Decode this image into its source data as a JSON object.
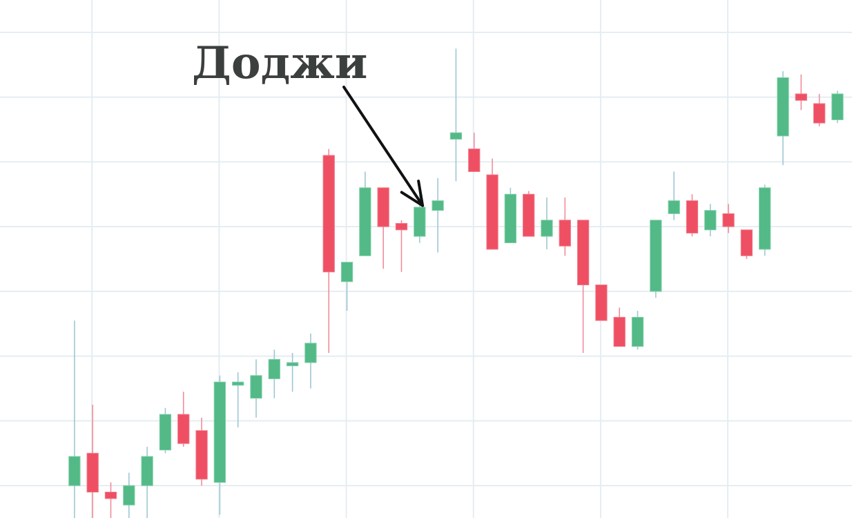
{
  "chart_data": {
    "type": "candlestick",
    "title": "",
    "xlabel": "",
    "ylabel": "",
    "grid": true,
    "ylim": [
      -0.5,
      7.5
    ],
    "x_range": [
      -4.1,
      42.8
    ],
    "colors": {
      "up": "#52b987",
      "up_wick": "#9fc7d2",
      "down": "#ef4f63",
      "down_wick": "#f08d99",
      "grid": "#e4edf2",
      "annotation": "#3b3f3d",
      "arrow": "#111111"
    },
    "annotation": {
      "text": "Доджи",
      "target_index": 20
    },
    "candles": [
      {
        "open": 0.0,
        "high": 2.55,
        "low": -0.8,
        "close": 0.45
      },
      {
        "open": 0.5,
        "high": 1.25,
        "low": -0.8,
        "close": -0.1
      },
      {
        "open": -0.1,
        "high": 0.05,
        "low": -0.8,
        "close": -0.2
      },
      {
        "open": -0.3,
        "high": 0.2,
        "low": -0.8,
        "close": 0.0
      },
      {
        "open": 0.0,
        "high": 0.6,
        "low": -0.8,
        "close": 0.45
      },
      {
        "open": 0.55,
        "high": 1.2,
        "low": 0.5,
        "close": 1.1
      },
      {
        "open": 1.1,
        "high": 1.45,
        "low": 0.6,
        "close": 0.65
      },
      {
        "open": 0.85,
        "high": 1.05,
        "low": 0.0,
        "close": 0.1
      },
      {
        "open": 0.05,
        "high": 1.7,
        "low": -0.45,
        "close": 1.6
      },
      {
        "open": 1.55,
        "high": 1.75,
        "low": 0.9,
        "close": 1.6
      },
      {
        "open": 1.35,
        "high": 1.95,
        "low": 1.05,
        "close": 1.7
      },
      {
        "open": 1.65,
        "high": 2.1,
        "low": 1.35,
        "close": 1.95
      },
      {
        "open": 1.85,
        "high": 2.05,
        "low": 1.45,
        "close": 1.9
      },
      {
        "open": 1.9,
        "high": 2.35,
        "low": 1.5,
        "close": 2.2
      },
      {
        "open": 5.1,
        "high": 5.2,
        "low": 2.05,
        "close": 3.3
      },
      {
        "open": 3.15,
        "high": 3.45,
        "low": 2.7,
        "close": 3.45
      },
      {
        "open": 3.55,
        "high": 4.85,
        "low": 3.6,
        "close": 4.6
      },
      {
        "open": 4.6,
        "high": 4.6,
        "low": 3.35,
        "close": 4.0
      },
      {
        "open": 4.05,
        "high": 4.1,
        "low": 3.3,
        "close": 3.95
      },
      {
        "open": 3.85,
        "high": 4.5,
        "low": 3.75,
        "close": 4.3
      },
      {
        "open": 4.25,
        "high": 4.75,
        "low": 3.6,
        "close": 4.4
      },
      {
        "open": 5.35,
        "high": 6.75,
        "low": 4.7,
        "close": 5.45
      },
      {
        "open": 5.2,
        "high": 5.45,
        "low": 4.85,
        "close": 4.85
      },
      {
        "open": 4.8,
        "high": 5.05,
        "low": 3.7,
        "close": 3.65
      },
      {
        "open": 3.75,
        "high": 4.6,
        "low": 3.75,
        "close": 4.5
      },
      {
        "open": 4.5,
        "high": 4.55,
        "low": 3.85,
        "close": 3.85
      },
      {
        "open": 3.85,
        "high": 4.45,
        "low": 3.65,
        "close": 4.1
      },
      {
        "open": 4.1,
        "high": 4.45,
        "low": 3.55,
        "close": 3.7
      },
      {
        "open": 4.1,
        "high": 4.1,
        "low": 2.05,
        "close": 3.1
      },
      {
        "open": 3.1,
        "high": 3.1,
        "low": 2.55,
        "close": 2.55
      },
      {
        "open": 2.6,
        "high": 2.75,
        "low": 2.15,
        "close": 2.15
      },
      {
        "open": 2.15,
        "high": 2.7,
        "low": 2.1,
        "close": 2.6
      },
      {
        "open": 3.0,
        "high": 4.1,
        "low": 2.9,
        "close": 4.1
      },
      {
        "open": 4.2,
        "high": 4.85,
        "low": 4.1,
        "close": 4.4
      },
      {
        "open": 4.4,
        "high": 4.5,
        "low": 3.85,
        "close": 3.9
      },
      {
        "open": 3.95,
        "high": 4.35,
        "low": 3.85,
        "close": 4.25
      },
      {
        "open": 4.2,
        "high": 4.35,
        "low": 3.9,
        "close": 4.0
      },
      {
        "open": 3.95,
        "high": 3.95,
        "low": 3.5,
        "close": 3.55
      },
      {
        "open": 3.65,
        "high": 4.65,
        "low": 3.55,
        "close": 4.6
      },
      {
        "open": 5.4,
        "high": 6.4,
        "low": 4.95,
        "close": 6.3
      },
      {
        "open": 6.05,
        "high": 6.35,
        "low": 5.8,
        "close": 5.95
      },
      {
        "open": 5.9,
        "high": 6.05,
        "low": 5.55,
        "close": 5.6
      },
      {
        "open": 5.65,
        "high": 6.1,
        "low": 5.6,
        "close": 6.05
      }
    ]
  }
}
